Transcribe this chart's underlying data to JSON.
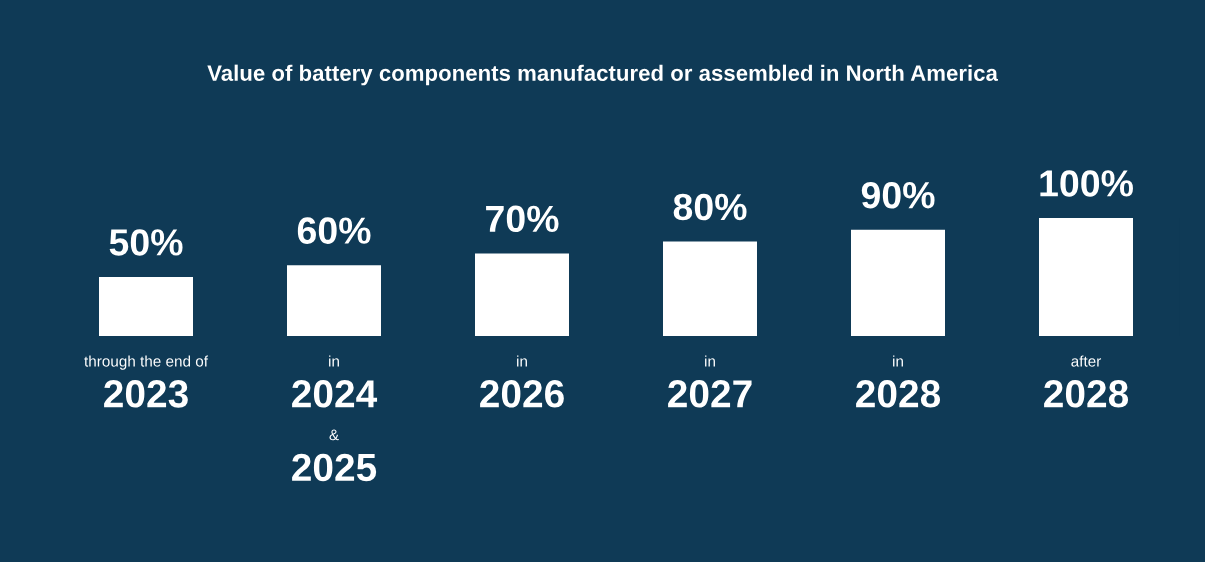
{
  "chart_data": {
    "type": "bar",
    "title": "Value of battery components manufactured or assembled in North America",
    "categories": [
      "through the end of\n2023",
      "in\n2024\n&\n2025",
      "in\n2026",
      "in\n2027",
      "in\n2028",
      "after\n2028"
    ],
    "values": [
      50,
      60,
      70,
      80,
      90,
      100
    ],
    "value_labels": [
      "50%",
      "60%",
      "70%",
      "80%",
      "90%",
      "100%"
    ],
    "color": "#ffffff",
    "ylim": [
      0,
      100
    ],
    "tick_labels": false
  }
}
